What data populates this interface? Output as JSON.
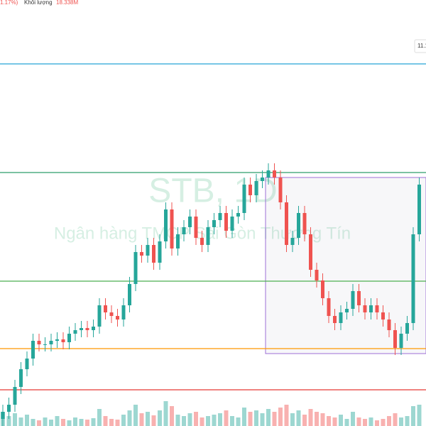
{
  "chart_data": {
    "type": "candlestick",
    "header": {
      "change": "1.17%)",
      "volume_label": "Khối lượng",
      "volume_value": "18.338M"
    },
    "price_tag": "11.1",
    "watermark": {
      "symbol": "STB, 1D",
      "name": "Ngân hàng TMCP Sài Gòn Thương Tín"
    },
    "ylim": [
      5.75,
      11.75
    ],
    "vlim": [
      0,
      60
    ],
    "up_color": "#26a69a",
    "down_color": "#ef5350",
    "open": [
      5.85,
      5.95,
      6.05,
      6.3,
      6.55,
      6.7,
      6.95,
      6.9,
      6.9,
      6.95,
      6.97,
      6.93,
      7.05,
      7.1,
      7.13,
      7.1,
      7.15,
      7.45,
      7.35,
      7.3,
      7.25,
      7.45,
      7.75,
      8.2,
      8.15,
      8.3,
      8.05,
      8.35,
      8.8,
      8.25,
      8.45,
      8.55,
      8.7,
      8.4,
      8.3,
      8.55,
      8.65,
      8.75,
      8.5,
      8.7,
      8.75,
      9.15,
      9.0,
      9.2,
      9.25,
      9.35,
      9.25,
      8.9,
      8.3,
      8.4,
      8.75,
      8.45,
      7.95,
      7.8,
      7.55,
      7.3,
      7.2,
      7.35,
      7.4,
      7.65,
      7.45,
      7.35,
      7.45,
      7.35,
      7.25,
      7.1,
      6.85,
      7.05,
      7.2,
      8.45
    ],
    "high": [
      6.05,
      6.15,
      6.4,
      6.65,
      6.8,
      7.05,
      7.05,
      7.0,
      7.05,
      7.07,
      7.07,
      7.15,
      7.2,
      7.23,
      7.23,
      7.25,
      7.55,
      7.55,
      7.45,
      7.4,
      7.55,
      7.85,
      8.3,
      8.3,
      8.4,
      8.4,
      8.45,
      8.9,
      8.9,
      8.55,
      8.65,
      8.8,
      8.8,
      8.5,
      8.65,
      8.75,
      8.85,
      8.85,
      8.8,
      8.85,
      9.25,
      9.25,
      9.3,
      9.35,
      9.45,
      9.45,
      9.35,
      9.0,
      8.5,
      8.85,
      8.85,
      8.55,
      8.05,
      7.9,
      7.65,
      7.4,
      7.45,
      7.5,
      7.75,
      7.75,
      7.55,
      7.55,
      7.55,
      7.45,
      7.35,
      7.2,
      7.15,
      7.3,
      8.55,
      9.25
    ],
    "low": [
      5.75,
      5.85,
      5.95,
      6.2,
      6.45,
      6.6,
      6.8,
      6.8,
      6.8,
      6.85,
      6.83,
      6.83,
      6.95,
      7.0,
      7.0,
      7.0,
      7.05,
      7.25,
      7.2,
      7.15,
      7.15,
      7.35,
      7.65,
      8.05,
      8.05,
      7.95,
      7.95,
      8.25,
      8.15,
      8.15,
      8.35,
      8.45,
      8.3,
      8.2,
      8.2,
      8.45,
      8.55,
      8.4,
      8.4,
      8.6,
      8.65,
      8.9,
      8.9,
      9.1,
      9.15,
      9.15,
      8.8,
      8.2,
      8.2,
      8.3,
      8.35,
      7.85,
      7.7,
      7.45,
      7.2,
      7.1,
      7.1,
      7.25,
      7.3,
      7.35,
      7.25,
      7.25,
      7.25,
      7.15,
      7.0,
      6.75,
      6.75,
      6.95,
      7.1,
      8.35
    ],
    "close": [
      5.95,
      6.05,
      6.3,
      6.55,
      6.7,
      6.95,
      6.9,
      6.9,
      6.95,
      6.97,
      6.93,
      7.05,
      7.1,
      7.13,
      7.1,
      7.15,
      7.45,
      7.35,
      7.3,
      7.25,
      7.45,
      7.75,
      8.2,
      8.15,
      8.3,
      8.05,
      8.35,
      8.8,
      8.25,
      8.45,
      8.55,
      8.7,
      8.4,
      8.3,
      8.55,
      8.65,
      8.75,
      8.5,
      8.7,
      8.75,
      9.15,
      9.0,
      9.2,
      9.25,
      9.35,
      9.25,
      8.9,
      8.3,
      8.4,
      8.75,
      8.45,
      7.95,
      7.8,
      7.55,
      7.3,
      7.2,
      7.35,
      7.4,
      7.65,
      7.45,
      7.35,
      7.45,
      7.35,
      7.25,
      7.1,
      6.85,
      7.05,
      7.2,
      8.45,
      9.15
    ],
    "volume": [
      20,
      14,
      18,
      12,
      16,
      10,
      8,
      12,
      9,
      14,
      10,
      8,
      12,
      10,
      9,
      11,
      24,
      14,
      10,
      9,
      16,
      22,
      30,
      18,
      20,
      15,
      22,
      35,
      28,
      16,
      14,
      18,
      20,
      12,
      14,
      16,
      18,
      22,
      14,
      12,
      26,
      20,
      22,
      18,
      24,
      20,
      26,
      30,
      18,
      22,
      16,
      24,
      20,
      18,
      14,
      12,
      16,
      10,
      20,
      12,
      10,
      12,
      8,
      10,
      14,
      18,
      12,
      14,
      28,
      30
    ],
    "levels": [
      {
        "value": 10.85,
        "color": "#26a3d6"
      },
      {
        "value": 9.32,
        "color": "#2e9e6b"
      },
      {
        "value": 7.79,
        "color": "#4caf50"
      },
      {
        "value": 6.84,
        "color": "#ff9800"
      },
      {
        "value": 6.26,
        "color": "#e53935"
      }
    ],
    "box": {
      "top": 9.25,
      "bottom": 6.77,
      "color": "#9c6fd6"
    }
  }
}
